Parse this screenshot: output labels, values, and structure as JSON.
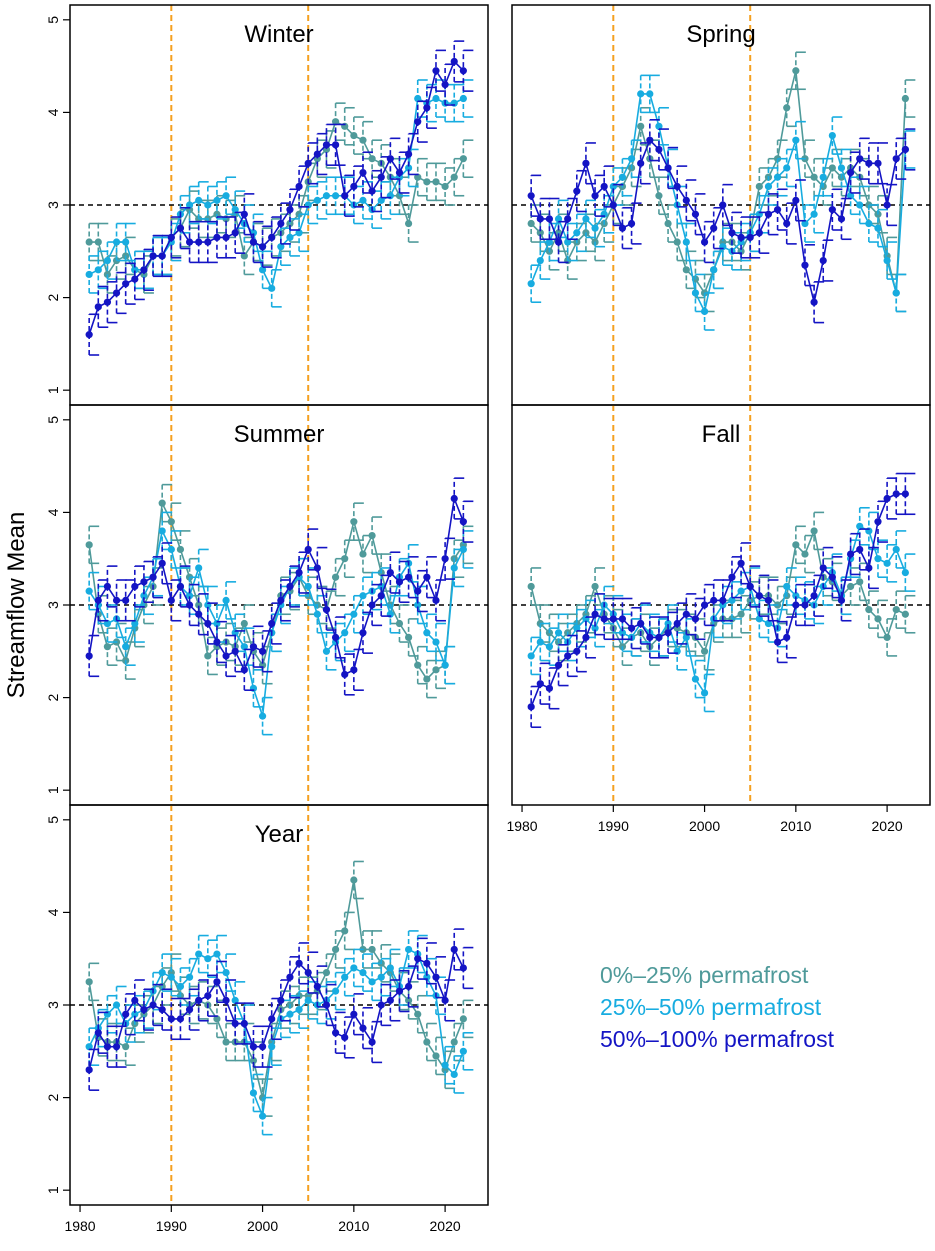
{
  "ylabel": "Streamflow Mean",
  "chart_data": [
    {
      "type": "line",
      "title": "Winter",
      "xlim": [
        1978.9,
        2024.7
      ],
      "ylim": [
        0.84,
        5.16
      ],
      "yticks": [
        1,
        2,
        3,
        4,
        5
      ],
      "vlines": [
        1990,
        2005
      ],
      "hline": 3,
      "x": [
        1981,
        1982,
        1983,
        1984,
        1985,
        1986,
        1987,
        1988,
        1989,
        1990,
        1991,
        1992,
        1993,
        1994,
        1995,
        1996,
        1997,
        1998,
        1999,
        2000,
        2001,
        2002,
        2003,
        2004,
        2005,
        2006,
        2007,
        2008,
        2009,
        2010,
        2011,
        2012,
        2013,
        2014,
        2015,
        2016,
        2017,
        2018,
        2019,
        2020,
        2021,
        2022
      ],
      "series": [
        {
          "name": "0%–25% permafrost",
          "color": "#4f9a9a",
          "error": 0.2,
          "values": [
            2.6,
            2.6,
            2.25,
            2.4,
            2.45,
            2.3,
            2.25,
            2.45,
            2.45,
            2.65,
            2.75,
            2.95,
            2.85,
            2.85,
            2.9,
            2.85,
            2.9,
            2.45,
            2.6,
            2.55,
            2.65,
            2.7,
            2.8,
            2.9,
            3.25,
            3.5,
            3.6,
            3.9,
            3.85,
            3.75,
            3.7,
            3.5,
            3.45,
            3.3,
            3.1,
            2.8,
            3.3,
            3.25,
            3.25,
            3.2,
            3.3,
            3.5
          ]
        },
        {
          "name": "25%–50% permafrost",
          "color": "#17ace0",
          "error": 0.2,
          "values": [
            2.25,
            2.3,
            2.4,
            2.6,
            2.6,
            2.3,
            2.3,
            2.45,
            2.45,
            2.6,
            2.9,
            3.0,
            3.05,
            3.0,
            3.05,
            3.1,
            2.95,
            2.8,
            2.7,
            2.3,
            2.1,
            2.55,
            2.65,
            2.7,
            3.0,
            3.05,
            3.1,
            3.1,
            3.1,
            3.0,
            3.05,
            2.95,
            3.05,
            3.1,
            3.3,
            3.4,
            4.15,
            4.1,
            4.15,
            4.1,
            4.1,
            4.15
          ]
        },
        {
          "name": "50%–100% permafrost",
          "color": "#1414c4",
          "error": 0.22,
          "values": [
            1.6,
            1.9,
            1.95,
            2.05,
            2.15,
            2.2,
            2.3,
            2.45,
            2.45,
            2.65,
            2.75,
            2.6,
            2.6,
            2.6,
            2.65,
            2.65,
            2.7,
            2.9,
            2.6,
            2.55,
            2.65,
            2.8,
            2.95,
            3.2,
            3.45,
            3.55,
            3.65,
            3.65,
            3.1,
            3.2,
            3.35,
            3.15,
            3.3,
            3.5,
            3.35,
            3.55,
            3.9,
            4.05,
            4.45,
            4.3,
            4.55,
            4.45
          ]
        }
      ]
    },
    {
      "type": "line",
      "title": "Spring",
      "xlim": [
        1978.9,
        2024.7
      ],
      "ylim": [
        0.84,
        5.16
      ],
      "vlines": [
        1990,
        2005
      ],
      "hline": 3,
      "x": [
        1981,
        1982,
        1983,
        1984,
        1985,
        1986,
        1987,
        1988,
        1989,
        1990,
        1991,
        1992,
        1993,
        1994,
        1995,
        1996,
        1997,
        1998,
        1999,
        2000,
        2001,
        2002,
        2003,
        2004,
        2005,
        2006,
        2007,
        2008,
        2009,
        2010,
        2011,
        2012,
        2013,
        2014,
        2015,
        2016,
        2017,
        2018,
        2019,
        2020,
        2021,
        2022
      ],
      "series": [
        {
          "name": "0%–25% permafrost",
          "color": "#4f9a9a",
          "error": 0.2,
          "values": [
            2.8,
            2.7,
            2.5,
            2.7,
            2.4,
            2.6,
            2.7,
            2.6,
            2.8,
            3.0,
            3.2,
            3.4,
            3.85,
            3.5,
            3.1,
            2.8,
            2.6,
            2.3,
            2.2,
            2.05,
            2.3,
            2.6,
            2.6,
            2.5,
            2.7,
            3.2,
            3.3,
            3.5,
            4.05,
            4.45,
            3.5,
            3.3,
            3.2,
            3.4,
            3.3,
            3.4,
            3.3,
            3.0,
            2.9,
            2.45,
            2.05,
            4.15
          ]
        },
        {
          "name": "25%–50% permafrost",
          "color": "#17ace0",
          "error": 0.2,
          "values": [
            2.15,
            2.4,
            2.6,
            2.85,
            2.6,
            2.7,
            2.85,
            2.75,
            2.9,
            3.2,
            3.3,
            3.5,
            4.2,
            4.2,
            3.85,
            3.4,
            3.0,
            2.6,
            2.05,
            1.85,
            2.3,
            2.55,
            2.5,
            2.6,
            2.7,
            2.9,
            3.2,
            3.3,
            3.4,
            3.7,
            2.8,
            2.9,
            3.3,
            3.75,
            3.4,
            3.1,
            3.0,
            2.8,
            2.75,
            2.4,
            2.05,
            3.6
          ]
        },
        {
          "name": "50%–100% permafrost",
          "color": "#1414c4",
          "error": 0.22,
          "values": [
            3.1,
            2.85,
            2.85,
            2.6,
            2.85,
            3.15,
            3.45,
            3.1,
            3.2,
            3.0,
            2.75,
            2.8,
            3.45,
            3.7,
            3.6,
            3.4,
            3.2,
            3.05,
            2.9,
            2.6,
            2.75,
            3.0,
            2.7,
            2.65,
            2.65,
            2.7,
            2.9,
            2.95,
            2.8,
            3.05,
            2.35,
            1.95,
            2.4,
            2.95,
            2.85,
            3.35,
            3.5,
            3.45,
            3.45,
            3.0,
            3.5,
            3.6
          ]
        }
      ]
    },
    {
      "type": "line",
      "title": "Summer",
      "xlim": [
        1978.9,
        2024.7
      ],
      "ylim": [
        0.84,
        5.16
      ],
      "yticks": [
        1,
        2,
        3,
        4,
        5
      ],
      "vlines": [
        1990,
        2005
      ],
      "hline": 3,
      "x": [
        1981,
        1982,
        1983,
        1984,
        1985,
        1986,
        1987,
        1988,
        1989,
        1990,
        1991,
        1992,
        1993,
        1994,
        1995,
        1996,
        1997,
        1998,
        1999,
        2000,
        2001,
        2002,
        2003,
        2004,
        2005,
        2006,
        2007,
        2008,
        2009,
        2010,
        2011,
        2012,
        2013,
        2014,
        2015,
        2016,
        2017,
        2018,
        2019,
        2020,
        2021,
        2022
      ],
      "series": [
        {
          "name": "0%–25% permafrost",
          "color": "#4f9a9a",
          "error": 0.2,
          "values": [
            3.65,
            2.9,
            2.55,
            2.6,
            2.4,
            2.75,
            3.0,
            3.2,
            4.1,
            3.9,
            3.6,
            3.3,
            3.0,
            2.45,
            2.55,
            2.6,
            2.55,
            2.8,
            2.5,
            2.35,
            2.7,
            3.1,
            3.15,
            3.3,
            3.1,
            3.0,
            2.95,
            3.3,
            3.5,
            3.9,
            3.55,
            3.75,
            3.35,
            3.0,
            2.8,
            2.65,
            2.35,
            2.2,
            2.3,
            2.35,
            3.5,
            3.65
          ]
        },
        {
          "name": "25%–50% permafrost",
          "color": "#17ace0",
          "error": 0.2,
          "values": [
            3.15,
            3.0,
            2.8,
            2.85,
            2.55,
            2.8,
            3.1,
            3.3,
            3.8,
            3.6,
            3.2,
            3.1,
            3.4,
            3.0,
            2.8,
            3.05,
            2.7,
            2.55,
            2.1,
            1.8,
            2.7,
            3.0,
            3.2,
            3.3,
            3.2,
            2.9,
            2.5,
            2.6,
            2.7,
            2.9,
            3.1,
            3.15,
            3.2,
            2.9,
            3.3,
            3.45,
            3.0,
            2.7,
            2.6,
            2.35,
            3.4,
            3.6
          ]
        },
        {
          "name": "50%–100% permafrost",
          "color": "#1414c4",
          "error": 0.22,
          "values": [
            2.45,
            3.05,
            3.2,
            3.05,
            3.05,
            3.2,
            3.25,
            3.3,
            3.45,
            3.05,
            3.2,
            3.0,
            2.9,
            2.8,
            2.6,
            2.45,
            2.5,
            2.3,
            2.55,
            2.5,
            2.8,
            3.05,
            3.2,
            3.35,
            3.6,
            3.4,
            2.95,
            2.65,
            2.25,
            2.3,
            2.7,
            3.0,
            3.1,
            3.35,
            3.25,
            3.3,
            3.15,
            3.3,
            3.05,
            3.5,
            4.15,
            3.9
          ]
        }
      ]
    },
    {
      "type": "line",
      "title": "Fall",
      "xlim": [
        1978.9,
        2024.7
      ],
      "ylim": [
        0.84,
        5.16
      ],
      "xticks": [
        1980,
        1990,
        2000,
        2010,
        2020
      ],
      "vlines": [
        1990,
        2005
      ],
      "hline": 3,
      "x": [
        1981,
        1982,
        1983,
        1984,
        1985,
        1986,
        1987,
        1988,
        1989,
        1990,
        1991,
        1992,
        1993,
        1994,
        1995,
        1996,
        1997,
        1998,
        1999,
        2000,
        2001,
        2002,
        2003,
        2004,
        2005,
        2006,
        2007,
        2008,
        2009,
        2010,
        2011,
        2012,
        2013,
        2014,
        2015,
        2016,
        2017,
        2018,
        2019,
        2020,
        2021,
        2022
      ],
      "series": [
        {
          "name": "0%–25% permafrost",
          "color": "#4f9a9a",
          "error": 0.2,
          "values": [
            3.2,
            2.8,
            2.7,
            2.6,
            2.7,
            2.8,
            2.9,
            3.2,
            2.9,
            2.75,
            2.55,
            2.65,
            2.7,
            2.55,
            2.65,
            2.75,
            2.75,
            2.7,
            2.65,
            2.5,
            2.8,
            2.85,
            2.85,
            2.9,
            3.05,
            3.1,
            3.1,
            3.0,
            3.1,
            3.65,
            3.55,
            3.8,
            3.3,
            3.25,
            3.1,
            3.2,
            3.25,
            2.95,
            2.85,
            2.65,
            2.95,
            2.9
          ]
        },
        {
          "name": "25%–50% permafrost",
          "color": "#17ace0",
          "error": 0.2,
          "values": [
            2.45,
            2.6,
            2.55,
            2.7,
            2.6,
            2.75,
            2.85,
            2.75,
            3.0,
            2.9,
            2.7,
            2.65,
            2.8,
            2.7,
            2.65,
            2.8,
            2.5,
            2.65,
            2.2,
            2.05,
            2.85,
            3.0,
            3.05,
            3.15,
            3.2,
            2.85,
            2.8,
            2.75,
            3.2,
            3.1,
            3.05,
            3.0,
            3.2,
            3.35,
            3.1,
            3.5,
            3.85,
            3.8,
            3.5,
            3.45,
            3.6,
            3.35
          ]
        },
        {
          "name": "50%–100% permafrost",
          "color": "#1414c4",
          "error": 0.22,
          "values": [
            1.9,
            2.15,
            2.1,
            2.35,
            2.45,
            2.5,
            2.65,
            2.9,
            2.85,
            2.85,
            2.85,
            2.75,
            2.8,
            2.65,
            2.65,
            2.7,
            2.8,
            2.9,
            2.85,
            3.0,
            3.05,
            3.05,
            3.3,
            3.45,
            3.2,
            3.1,
            3.05,
            2.6,
            2.65,
            3.0,
            3.0,
            3.1,
            3.4,
            3.3,
            3.05,
            3.55,
            3.6,
            3.4,
            3.9,
            4.15,
            4.2,
            4.2
          ]
        }
      ]
    },
    {
      "type": "line",
      "title": "Year",
      "xlim": [
        1978.9,
        2024.7
      ],
      "ylim": [
        0.84,
        5.16
      ],
      "yticks": [
        1,
        2,
        3,
        4,
        5
      ],
      "xticks": [
        1980,
        1990,
        2000,
        2010,
        2020
      ],
      "vlines": [
        1990,
        2005
      ],
      "hline": 3,
      "x": [
        1981,
        1982,
        1983,
        1984,
        1985,
        1986,
        1987,
        1988,
        1989,
        1990,
        1991,
        1992,
        1993,
        1994,
        1995,
        1996,
        1997,
        1998,
        1999,
        2000,
        2001,
        2002,
        2003,
        2004,
        2005,
        2006,
        2007,
        2008,
        2009,
        2010,
        2011,
        2012,
        2013,
        2014,
        2015,
        2016,
        2017,
        2018,
        2019,
        2020,
        2021,
        2022
      ],
      "series": [
        {
          "name": "0%–25% permafrost",
          "color": "#4f9a9a",
          "error": 0.2,
          "values": [
            3.25,
            2.65,
            2.6,
            2.6,
            2.55,
            2.8,
            2.9,
            3.0,
            3.2,
            3.35,
            3.1,
            3.0,
            3.05,
            3.0,
            2.85,
            2.6,
            2.6,
            2.6,
            2.4,
            2.0,
            2.6,
            2.95,
            3.0,
            3.1,
            3.1,
            3.15,
            3.35,
            3.6,
            3.8,
            4.35,
            3.6,
            3.6,
            3.45,
            3.35,
            3.15,
            3.05,
            2.9,
            2.6,
            2.45,
            2.3,
            2.6,
            2.85
          ]
        },
        {
          "name": "25%–50% permafrost",
          "color": "#17ace0",
          "error": 0.2,
          "values": [
            2.55,
            2.75,
            2.9,
            3.0,
            2.8,
            2.9,
            2.95,
            3.15,
            3.35,
            3.3,
            3.2,
            3.3,
            3.55,
            3.5,
            3.55,
            3.35,
            3.05,
            2.8,
            2.05,
            1.8,
            2.55,
            2.85,
            2.9,
            2.95,
            3.05,
            3.0,
            3.05,
            3.15,
            3.3,
            3.4,
            3.35,
            3.25,
            3.3,
            3.4,
            3.2,
            3.6,
            3.55,
            3.3,
            3.1,
            2.35,
            2.25,
            2.5
          ]
        },
        {
          "name": "50%–100% permafrost",
          "color": "#1414c4",
          "error": 0.22,
          "values": [
            2.3,
            2.7,
            2.55,
            2.55,
            2.9,
            3.05,
            2.95,
            3.0,
            2.95,
            2.85,
            2.85,
            2.95,
            3.05,
            3.1,
            3.25,
            3.05,
            2.8,
            2.8,
            2.55,
            2.55,
            2.85,
            3.05,
            3.3,
            3.45,
            3.35,
            3.2,
            3.0,
            2.7,
            2.65,
            2.9,
            2.75,
            2.6,
            3.0,
            3.05,
            3.15,
            3.2,
            3.5,
            3.45,
            3.3,
            3.05,
            3.6,
            3.4
          ]
        }
      ]
    }
  ]
}
